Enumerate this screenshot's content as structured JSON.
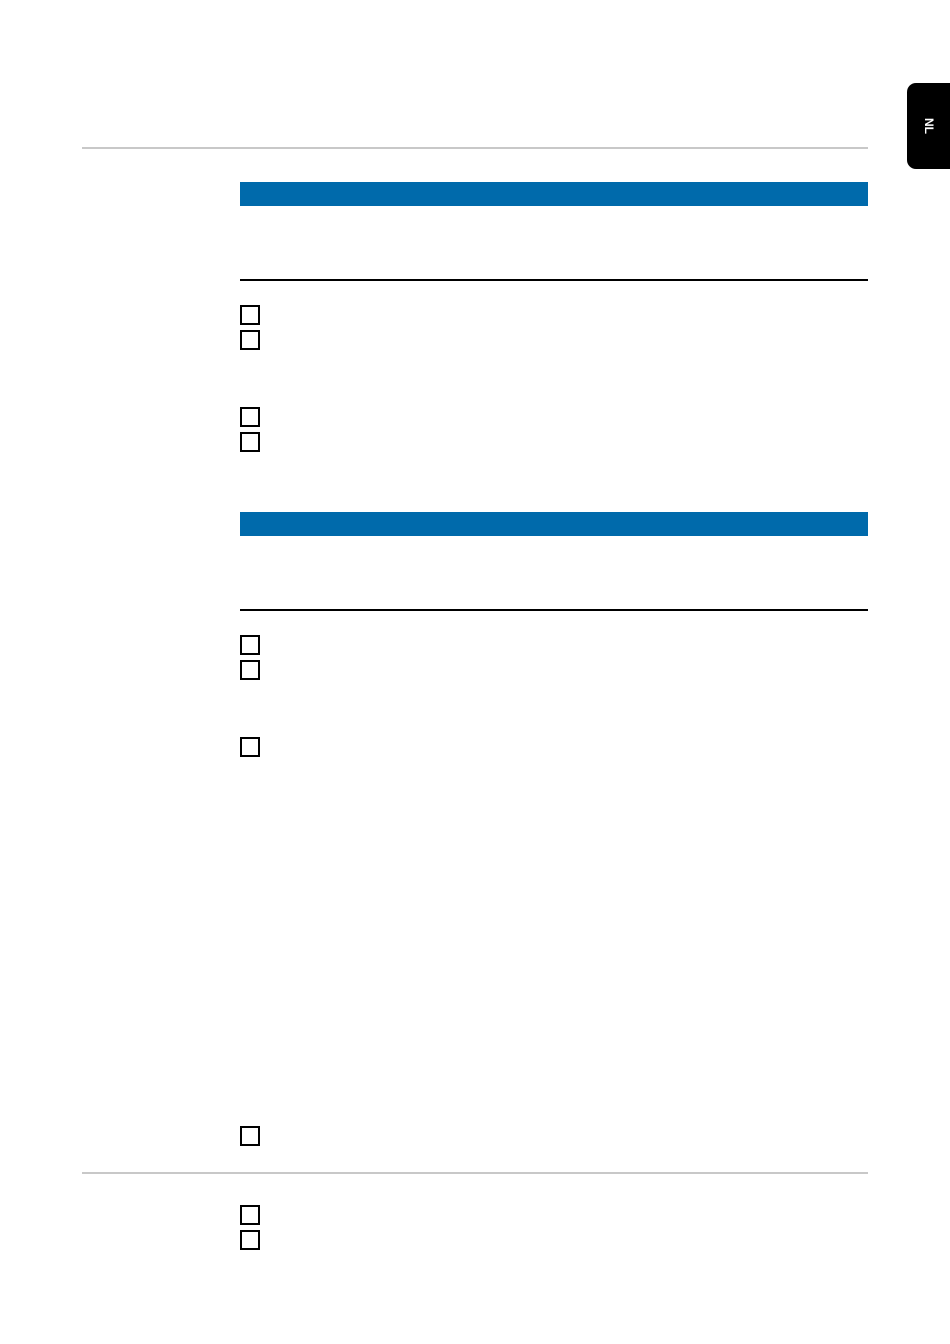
{
  "language_tab": {
    "label": "NL",
    "background": "#000000"
  },
  "colors": {
    "section_bar": "#006aab",
    "rule": "#c8c8c8"
  },
  "checkboxes": [
    {
      "checked": false
    },
    {
      "checked": false
    },
    {
      "checked": false
    },
    {
      "checked": false
    },
    {
      "checked": false
    },
    {
      "checked": false
    },
    {
      "checked": false
    },
    {
      "checked": false
    },
    {
      "checked": false
    },
    {
      "checked": false
    }
  ]
}
